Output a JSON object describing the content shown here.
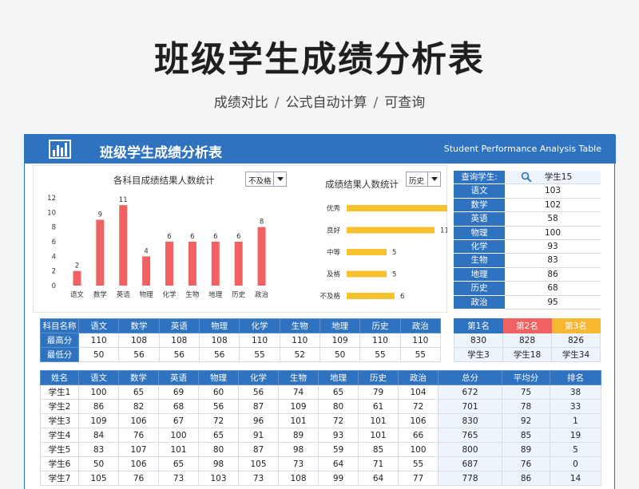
{
  "page": {
    "title": "班级学生成绩分析表",
    "subtitle_parts": [
      "成绩对比",
      "公式自动计算",
      "可查询"
    ],
    "subtitle_sep": "/"
  },
  "card": {
    "title": "班级学生成绩分析表",
    "title_en": "Student Performance Analysis Table",
    "logo_icon": "bar-chart-logo-icon"
  },
  "colors": {
    "accent": "#2e72c0",
    "bar_red": "#f06262",
    "bar_yellow": "#f7c12f",
    "first": "#2e72c0",
    "second": "#f06262",
    "third": "#f7b731"
  },
  "chart_data": [
    {
      "type": "bar",
      "title": "各科目成绩结果人数统计",
      "filter": "不及格",
      "categories": [
        "语文",
        "数学",
        "英语",
        "物理",
        "化学",
        "生物",
        "地理",
        "历史",
        "政治"
      ],
      "values": [
        2,
        9,
        11,
        4,
        6,
        6,
        6,
        6,
        8
      ],
      "ylim": [
        0,
        12
      ],
      "yticks": [
        0,
        2,
        4,
        6,
        8,
        10,
        12
      ],
      "grid": false
    },
    {
      "type": "bar",
      "orientation": "horizontal",
      "title": "成绩结果人数统计",
      "filter": "历史",
      "categories": [
        "优秀",
        "良好",
        "中等",
        "及格",
        "不及格"
      ],
      "values": [
        13,
        11,
        5,
        5,
        6
      ],
      "grid": false
    }
  ],
  "lookup": {
    "label": "查询学生:",
    "student": "学生15",
    "search_icon": "magnifier-icon",
    "rows": [
      {
        "subject": "语文",
        "score": "103"
      },
      {
        "subject": "数学",
        "score": "102"
      },
      {
        "subject": "英语",
        "score": "58"
      },
      {
        "subject": "物理",
        "score": "100"
      },
      {
        "subject": "化学",
        "score": "93"
      },
      {
        "subject": "生物",
        "score": "83"
      },
      {
        "subject": "地理",
        "score": "86"
      },
      {
        "subject": "历史",
        "score": "68"
      },
      {
        "subject": "政治",
        "score": "95"
      }
    ]
  },
  "summary": {
    "header": [
      "科目名称",
      "语文",
      "数学",
      "英语",
      "物理",
      "化学",
      "生物",
      "地理",
      "历史",
      "政治"
    ],
    "rows": [
      [
        "最高分",
        "110",
        "108",
        "108",
        "108",
        "110",
        "110",
        "109",
        "110",
        "110"
      ],
      [
        "最低分",
        "50",
        "56",
        "56",
        "56",
        "55",
        "52",
        "50",
        "55",
        "55"
      ]
    ]
  },
  "ranking": {
    "header": [
      "第1名",
      "第2名",
      "第3名"
    ],
    "scores": [
      "830",
      "828",
      "826"
    ],
    "names": [
      "学生3",
      "学生18",
      "学生34"
    ]
  },
  "students": {
    "header": [
      "姓名",
      "语文",
      "数学",
      "英语",
      "物理",
      "化学",
      "生物",
      "地理",
      "历史",
      "政治",
      "总分",
      "平均分",
      "排名"
    ],
    "rows": [
      [
        "学生1",
        "100",
        "65",
        "69",
        "60",
        "56",
        "74",
        "65",
        "79",
        "104",
        "672",
        "75",
        "38"
      ],
      [
        "学生2",
        "86",
        "82",
        "68",
        "56",
        "87",
        "109",
        "80",
        "61",
        "72",
        "701",
        "78",
        "33"
      ],
      [
        "学生3",
        "109",
        "106",
        "67",
        "72",
        "96",
        "101",
        "72",
        "101",
        "106",
        "830",
        "92",
        "1"
      ],
      [
        "学生4",
        "84",
        "76",
        "100",
        "65",
        "91",
        "89",
        "93",
        "101",
        "66",
        "765",
        "85",
        "19"
      ],
      [
        "学生5",
        "83",
        "107",
        "101",
        "80",
        "87",
        "98",
        "59",
        "85",
        "100",
        "800",
        "89",
        "5"
      ],
      [
        "学生6",
        "50",
        "106",
        "65",
        "98",
        "105",
        "73",
        "64",
        "71",
        "55",
        "687",
        "76",
        "0"
      ],
      [
        "学生7",
        "105",
        "76",
        "73",
        "103",
        "73",
        "108",
        "99",
        "64",
        "77",
        "778",
        "86",
        "14"
      ]
    ]
  }
}
